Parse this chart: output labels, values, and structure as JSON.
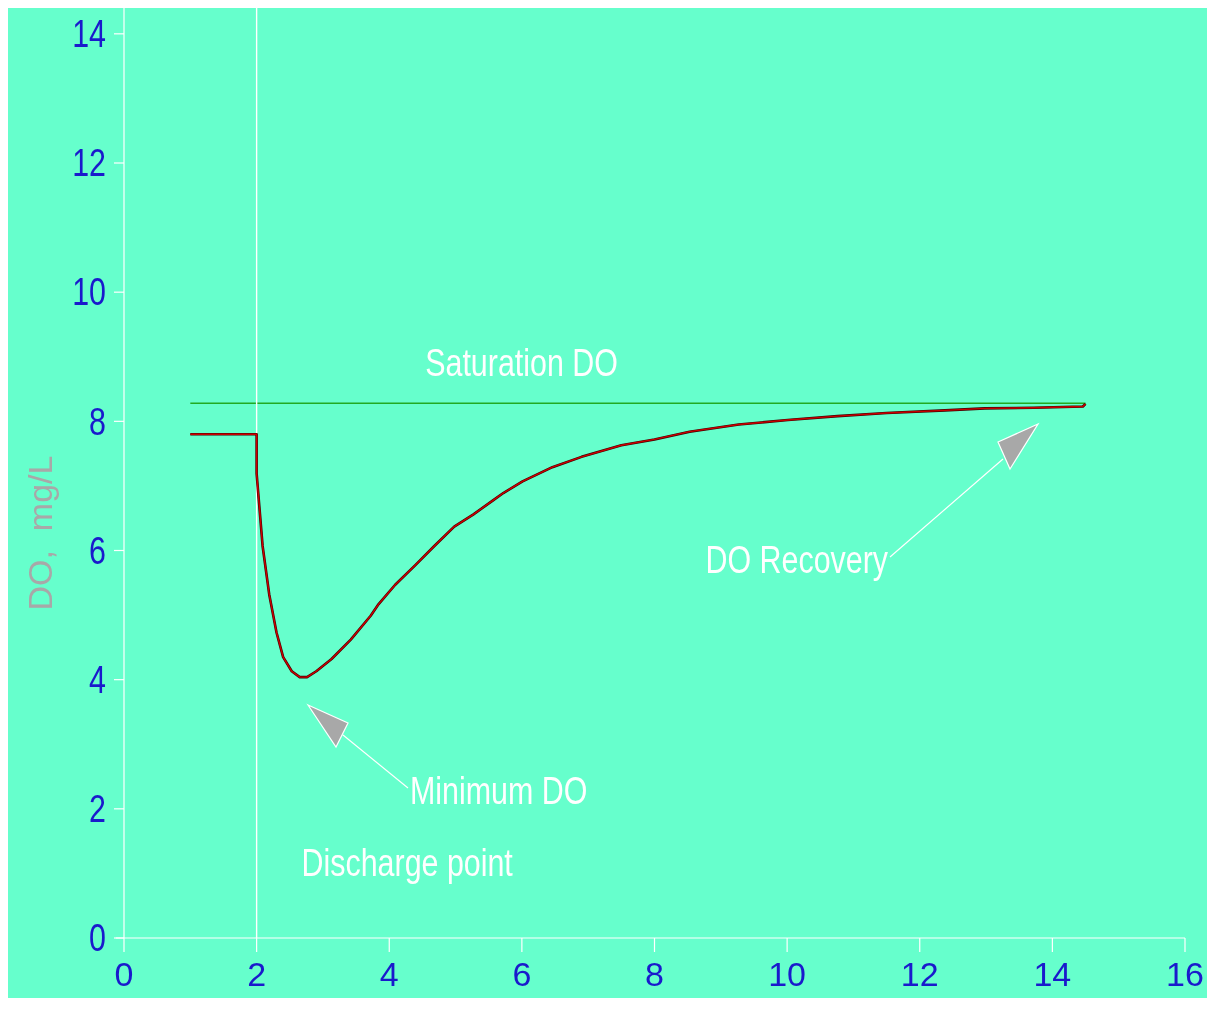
{
  "chart_data": {
    "type": "line",
    "ylabel": "DO,  mg/L",
    "xlim": [
      0,
      16
    ],
    "ylim": [
      0,
      14.4
    ],
    "xticks": [
      0,
      2,
      4,
      6,
      8,
      10,
      12,
      14,
      16
    ],
    "yticks": [
      0,
      2,
      4,
      6,
      8,
      10,
      12,
      14
    ],
    "grid": false,
    "marker": "none",
    "line_style": "solid",
    "series": [
      {
        "color": "#cc0000",
        "x": [
          1,
          2,
          2,
          2.09,
          2.19,
          2.3,
          2.4,
          2.53,
          2.65,
          2.76,
          2.9,
          3.13,
          3.42,
          3.72,
          3.84,
          4.09,
          4.39,
          4.68,
          4.98,
          5.27,
          5.57,
          5.72,
          6.01,
          6.46,
          6.9,
          7.5,
          8,
          8.53,
          9.27,
          10.01,
          10.76,
          11.5,
          12.38,
          12.98,
          13.72,
          14.46,
          14.5
        ],
        "values": [
          7.8,
          7.8,
          7.19,
          6.07,
          5.32,
          4.73,
          4.35,
          4.13,
          4.04,
          4.04,
          4.13,
          4.32,
          4.62,
          4.99,
          5.17,
          5.47,
          5.77,
          6.07,
          6.37,
          6.56,
          6.78,
          6.89,
          7.07,
          7.29,
          7.45,
          7.63,
          7.72,
          7.84,
          7.95,
          8.02,
          8.08,
          8.13,
          8.17,
          8.2,
          8.21,
          8.23,
          8.27
        ]
      }
    ],
    "ref_lines": [
      {
        "axis": "y",
        "value": 8.28,
        "label": "Saturation DO",
        "color": "#22aa22"
      },
      {
        "axis": "x",
        "value": 2,
        "label": "Discharge point",
        "color": "#ffffff"
      }
    ],
    "annotations": [
      "Minimum DO",
      "DO Recovery"
    ]
  }
}
